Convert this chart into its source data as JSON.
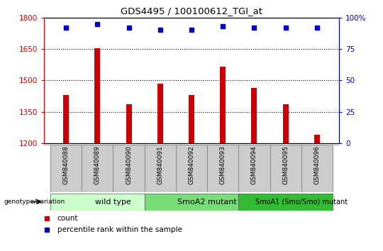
{
  "title": "GDS4495 / 100100612_TGI_at",
  "samples": [
    "GSM840088",
    "GSM840089",
    "GSM840090",
    "GSM840091",
    "GSM840092",
    "GSM840093",
    "GSM840094",
    "GSM840095",
    "GSM840096"
  ],
  "counts": [
    1430,
    1655,
    1385,
    1485,
    1430,
    1565,
    1465,
    1385,
    1240
  ],
  "percentiles": [
    92,
    95,
    92,
    90,
    90,
    93,
    92,
    92,
    92
  ],
  "ylim_left": [
    1200,
    1800
  ],
  "ylim_right": [
    0,
    100
  ],
  "yticks_left": [
    1200,
    1350,
    1500,
    1650,
    1800
  ],
  "yticks_right": [
    0,
    25,
    50,
    75,
    100
  ],
  "ytick_right_labels": [
    "0",
    "25",
    "50",
    "75",
    "100%"
  ],
  "groups": [
    {
      "label": "wild type",
      "start": 0,
      "end": 3,
      "color": "#ccffcc"
    },
    {
      "label": "SmoA2 mutant",
      "start": 3,
      "end": 6,
      "color": "#77dd77"
    },
    {
      "label": "SmoA1 (Smo/Smo) mutant",
      "start": 6,
      "end": 9,
      "color": "#33bb33"
    }
  ],
  "bar_color": "#cc0000",
  "dot_color": "#0000cc",
  "bar_width": 0.18,
  "left_tick_color": "#cc0000",
  "right_tick_color": "#0000cc",
  "label_box_color": "#cccccc",
  "legend_items": [
    {
      "label": "count",
      "color": "#cc0000"
    },
    {
      "label": "percentile rank within the sample",
      "color": "#0000cc"
    }
  ],
  "genotype_label": "genotype/variation"
}
